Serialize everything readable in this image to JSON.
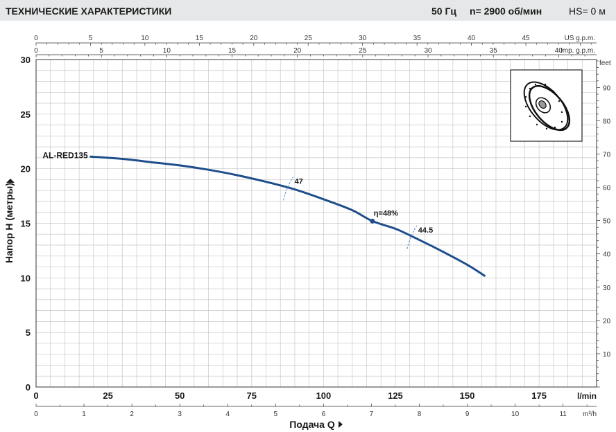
{
  "header": {
    "title": "ТЕХНИЧЕСКИЕ ХАРАКТЕРИСТИКИ",
    "frequency": "50 Гц",
    "speed": "n= 2900  об/мин",
    "hs": "HS= 0 м"
  },
  "chart_data": {
    "type": "line",
    "title": "",
    "ylabel": "Напор H (метры)",
    "xlabel": "Подача Q",
    "primary_x": {
      "unit": "l/min",
      "range": [
        0,
        195
      ],
      "ticks": [
        0,
        25,
        50,
        75,
        100,
        125,
        150,
        175
      ]
    },
    "secondary_x_m3h": {
      "unit": "m³/h",
      "range": [
        0,
        11.7
      ],
      "ticks": [
        0,
        1,
        2,
        3,
        4,
        5,
        6,
        7,
        8,
        9,
        10,
        11
      ]
    },
    "top_x_us_gpm": {
      "unit": "US g.p.m.",
      "range": [
        0,
        51.5
      ],
      "ticks": [
        0,
        5,
        10,
        15,
        20,
        25,
        30,
        35,
        40,
        45
      ]
    },
    "top_x_imp_gpm": {
      "unit": "Imp. g.p.m.",
      "range": [
        0,
        42.9
      ],
      "ticks": [
        0,
        5,
        10,
        15,
        20,
        25,
        30,
        35,
        40
      ]
    },
    "left_y": {
      "unit": "м",
      "range": [
        0,
        30
      ],
      "ticks": [
        0,
        5,
        10,
        15,
        20,
        25,
        30
      ]
    },
    "right_y": {
      "unit": "feet",
      "range": [
        0,
        98.4
      ],
      "ticks": [
        10,
        20,
        30,
        40,
        50,
        60,
        70,
        80,
        90
      ]
    },
    "grid": true,
    "series": [
      {
        "name": "AL-RED135",
        "color": "#1f4e8c",
        "x": [
          19,
          30,
          40,
          50,
          60,
          70,
          80,
          90,
          100,
          110,
          117,
          125,
          130,
          140,
          150,
          156
        ],
        "y": [
          21.1,
          20.9,
          20.6,
          20.3,
          19.9,
          19.4,
          18.8,
          18.1,
          17.2,
          16.2,
          15.2,
          14.5,
          13.9,
          12.6,
          11.2,
          10.2
        ]
      }
    ],
    "annotations": [
      {
        "text": "47",
        "x": 88
      },
      {
        "text": "44.5",
        "x": 131
      }
    ],
    "bep": {
      "text": "η=48%",
      "x": 117,
      "y": 15.2
    }
  }
}
